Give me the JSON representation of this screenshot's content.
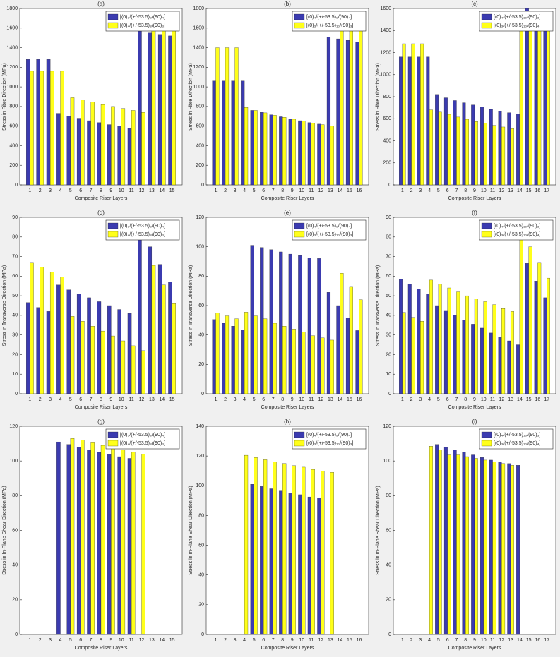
{
  "chart_data": [
    {
      "type": "bar",
      "title": "(a)",
      "xlabel": "Composite Riser Layers",
      "ylabel": "Stress in Fibre Direction (MPa)",
      "categories": [
        "1",
        "2",
        "3",
        "4",
        "5",
        "6",
        "7",
        "8",
        "9",
        "10",
        "11",
        "12",
        "13",
        "14",
        "15"
      ],
      "series": [
        {
          "name": "[(0)₃/(+/-53.5)₈/(90)₄]",
          "color": "#3b3bb0",
          "values": [
            1280,
            1280,
            1280,
            730,
            700,
            680,
            655,
            635,
            615,
            600,
            580,
            1570,
            1550,
            1535,
            1520
          ]
        },
        {
          "name": "[(0)₄/(+/-53.5)₈/(90)₃]",
          "color": "#ffff1a",
          "values": [
            1160,
            1160,
            1160,
            1160,
            890,
            865,
            845,
            820,
            800,
            780,
            760,
            740,
            1745,
            1725,
            1710
          ]
        }
      ],
      "ylim": [
        0,
        1800
      ],
      "yticks": [
        0,
        200,
        400,
        600,
        800,
        1000,
        1200,
        1400,
        1600,
        1800
      ],
      "legend": "upper right"
    },
    {
      "type": "bar",
      "title": "(b)",
      "xlabel": "Composite Riser Layers",
      "ylabel": "Stress in Fibre Direction (MPa)",
      "categories": [
        "1",
        "2",
        "3",
        "4",
        "5",
        "6",
        "7",
        "8",
        "9",
        "10",
        "11",
        "12",
        "13",
        "14",
        "15",
        "16"
      ],
      "series": [
        {
          "name": "[(0)₄/(+/-53.5)₈/(90)₄]",
          "color": "#3b3bb0",
          "values": [
            1060,
            1060,
            1060,
            1060,
            760,
            740,
            715,
            695,
            675,
            655,
            635,
            620,
            1510,
            1490,
            1475,
            1460
          ]
        },
        {
          "name": "[(0)₃/(+/-53.5)₁₀/(90)₃]",
          "color": "#ffff1a",
          "values": [
            1400,
            1400,
            1400,
            790,
            760,
            735,
            710,
            690,
            670,
            650,
            630,
            615,
            600,
            1660,
            1640,
            1625
          ]
        }
      ],
      "ylim": [
        0,
        1800
      ],
      "yticks": [
        0,
        200,
        400,
        600,
        800,
        1000,
        1200,
        1400,
        1600,
        1800
      ],
      "legend": "upper right"
    },
    {
      "type": "bar",
      "title": "(c)",
      "xlabel": "Composite Riser Layers",
      "ylabel": "Stress in Fibre Direction (MPa)",
      "categories": [
        "1",
        "2",
        "3",
        "4",
        "5",
        "6",
        "7",
        "8",
        "9",
        "10",
        "11",
        "12",
        "13",
        "14",
        "15",
        "16",
        "17"
      ],
      "series": [
        {
          "name": "[(0)₄/(+/-53.5)₁₀/(90)₃]",
          "color": "#3b3bb0",
          "values": [
            1160,
            1160,
            1160,
            1160,
            820,
            790,
            765,
            745,
            725,
            705,
            685,
            670,
            655,
            645,
            1600,
            1575,
            1560
          ]
        },
        {
          "name": "[(0)₃/(+/-53.5)₁₀/(90)₄]",
          "color": "#ffff1a",
          "values": [
            1280,
            1280,
            1280,
            680,
            660,
            640,
            615,
            595,
            575,
            560,
            540,
            525,
            510,
            1450,
            1430,
            1415,
            1405
          ]
        }
      ],
      "ylim": [
        0,
        1600
      ],
      "yticks": [
        0,
        200,
        400,
        600,
        800,
        1000,
        1200,
        1400,
        1600
      ],
      "legend": "upper right"
    },
    {
      "type": "bar",
      "title": "(d)",
      "xlabel": "Composite Riser Layers",
      "ylabel": "Stress in Transverse Direction (MPa)",
      "categories": [
        "1",
        "2",
        "3",
        "4",
        "5",
        "6",
        "7",
        "8",
        "9",
        "10",
        "11",
        "12",
        "13",
        "14",
        "15"
      ],
      "series": [
        {
          "name": "[(0)₃/(+/-53.5)₈/(90)₄]",
          "color": "#3b3bb0",
          "values": [
            46.5,
            44,
            42,
            55.5,
            53,
            51,
            49,
            47,
            45,
            43,
            41,
            84,
            75,
            66,
            57
          ]
        },
        {
          "name": "[(0)₄/(+/-53.5)₈/(90)₃]",
          "color": "#ffff1a",
          "values": [
            67,
            64.5,
            62,
            59.5,
            39.5,
            37,
            34.5,
            32,
            29.5,
            27,
            24.5,
            22,
            65.5,
            55.5,
            46
          ]
        }
      ],
      "ylim": [
        0,
        90
      ],
      "yticks": [
        0,
        10,
        20,
        30,
        40,
        50,
        60,
        70,
        80,
        90
      ],
      "legend": "upper right"
    },
    {
      "type": "bar",
      "title": "(e)",
      "xlabel": "Composite Riser Layers",
      "ylabel": "Stress in Transverse Direction (MPa)",
      "categories": [
        "1",
        "2",
        "3",
        "4",
        "5",
        "6",
        "7",
        "8",
        "9",
        "10",
        "11",
        "12",
        "13",
        "14",
        "15",
        "16"
      ],
      "series": [
        {
          "name": "[(0)₄/(+/-53.5)₈/(90)₄]",
          "color": "#3b3bb0",
          "values": [
            50.5,
            48,
            46,
            43.5,
            101,
            99.5,
            98,
            96.5,
            95,
            94,
            92.5,
            92,
            69,
            60,
            51.5,
            43
          ]
        },
        {
          "name": "[(0)₃/(+/-53.5)₁₀/(90)₃]",
          "color": "#ffff1a",
          "values": [
            55,
            53,
            51,
            55.5,
            53,
            51,
            48,
            46,
            44,
            42,
            39.5,
            38,
            36.5,
            82,
            73,
            64
          ]
        }
      ],
      "ylim": [
        0,
        120
      ],
      "yticks": [
        0,
        20,
        40,
        60,
        80,
        100,
        120
      ],
      "legend": "upper right"
    },
    {
      "type": "bar",
      "title": "(f)",
      "xlabel": "Composite Riser Layers",
      "ylabel": "Stress in Transverse Direction (MPa)",
      "categories": [
        "1",
        "2",
        "3",
        "4",
        "5",
        "6",
        "7",
        "8",
        "9",
        "10",
        "11",
        "12",
        "13",
        "14",
        "15",
        "16",
        "17"
      ],
      "series": [
        {
          "name": "[(0)₄/(+/-53.5)₁₀/(90)₃]",
          "color": "#3b3bb0",
          "values": [
            58.5,
            56,
            53.5,
            51,
            45,
            42.5,
            40,
            37.5,
            35.5,
            33.5,
            31,
            29,
            27,
            25,
            66.5,
            57.5,
            49
          ]
        },
        {
          "name": "[(0)₃/(+/-53.5)₁₀/(90)₄]",
          "color": "#ffff1a",
          "values": [
            41.5,
            39,
            37,
            58,
            56,
            54,
            52,
            50,
            48.5,
            47,
            45.5,
            43.5,
            42,
            83.5,
            75,
            67,
            59
          ]
        }
      ],
      "ylim": [
        0,
        90
      ],
      "yticks": [
        0,
        10,
        20,
        30,
        40,
        50,
        60,
        70,
        80,
        90
      ],
      "legend": "upper right"
    },
    {
      "type": "bar",
      "title": "(g)",
      "xlabel": "Composite Riser Layers",
      "ylabel": "Stress in In-Plane Shear Direction (MPa)",
      "categories": [
        "1",
        "2",
        "3",
        "4",
        "5",
        "6",
        "7",
        "8",
        "9",
        "10",
        "11",
        "12",
        "13",
        "14",
        "15"
      ],
      "series": [
        {
          "name": "[(0)₃/(+/-53.5)₈/(90)₄]",
          "color": "#3b3bb0",
          "values": [
            0,
            0,
            0,
            111,
            109.5,
            108,
            106.5,
            105,
            104,
            102.5,
            101.5,
            0,
            0,
            0,
            0
          ]
        },
        {
          "name": "[(0)₄/(+/-53.5)₈/(90)₃]",
          "color": "#ffff1a",
          "values": [
            0,
            0,
            0,
            0,
            113,
            112,
            110.5,
            109,
            108,
            106.5,
            105,
            104,
            0,
            0,
            0
          ]
        }
      ],
      "ylim": [
        0,
        120
      ],
      "yticks": [
        0,
        20,
        40,
        60,
        80,
        100,
        120
      ],
      "legend": "upper right"
    },
    {
      "type": "bar",
      "title": "(h)",
      "xlabel": "Composite Riser Layers",
      "ylabel": "Stress in In-Plane Shear Direction (MPa)",
      "categories": [
        "1",
        "2",
        "3",
        "4",
        "5",
        "6",
        "7",
        "8",
        "9",
        "10",
        "11",
        "12",
        "13",
        "14",
        "15",
        "16"
      ],
      "series": [
        {
          "name": "[(0)₄/(+/-53.5)₈/(90)₄]",
          "color": "#3b3bb0",
          "values": [
            0,
            0,
            0,
            0,
            101,
            99.5,
            98,
            96.5,
            95,
            94,
            92.5,
            92,
            0,
            0,
            0,
            0
          ]
        },
        {
          "name": "[(0)₃/(+/-53.5)₁₀/(90)₃]",
          "color": "#ffff1a",
          "values": [
            0,
            0,
            0,
            120.5,
            119,
            117.5,
            116,
            115,
            113.5,
            112.5,
            111,
            110,
            109,
            0,
            0,
            0
          ]
        }
      ],
      "ylim": [
        0,
        140
      ],
      "yticks": [
        0,
        20,
        40,
        60,
        80,
        100,
        120,
        140
      ],
      "legend": "upper right"
    },
    {
      "type": "bar",
      "title": "(i)",
      "xlabel": "Composite Riser Layers",
      "ylabel": "Stress in In-Plane Shear Direction (MPa)",
      "categories": [
        "1",
        "2",
        "3",
        "4",
        "5",
        "6",
        "7",
        "8",
        "9",
        "10",
        "11",
        "12",
        "13",
        "14",
        "15",
        "16",
        "17"
      ],
      "series": [
        {
          "name": "[(0)₄/(+/-53.5)₁₀/(90)₃]",
          "color": "#3b3bb0",
          "values": [
            0,
            0,
            0,
            0,
            109.5,
            108,
            106.5,
            105,
            103.5,
            102,
            100.5,
            99.5,
            98.5,
            97.5,
            0,
            0,
            0
          ]
        },
        {
          "name": "[(0)₃/(+/-53.5)₁₀/(90)₄]",
          "color": "#ffff1a",
          "values": [
            0,
            0,
            0,
            108.5,
            106.5,
            103.5,
            103.5,
            102.5,
            101.5,
            100.5,
            99.5,
            98.5,
            97.5,
            0,
            0,
            0,
            0
          ]
        }
      ],
      "ylim": [
        0,
        120
      ],
      "yticks": [
        0,
        20,
        40,
        60,
        80,
        100,
        120
      ],
      "legend": "upper right"
    }
  ]
}
